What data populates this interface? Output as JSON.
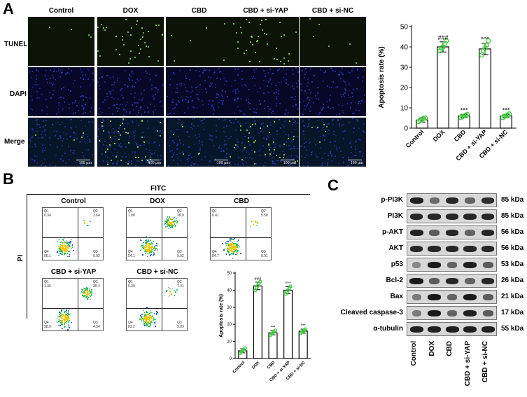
{
  "panelA": {
    "letter": "A",
    "columns": [
      "Control",
      "DOX",
      "CBD",
      "CBD + si-YAP",
      "CBD + si-NC"
    ],
    "rows": [
      "TUNEL",
      "DAPI",
      "Merge"
    ],
    "scale_bar": "100 μm",
    "chart_data": {
      "type": "bar",
      "categories": [
        "Control",
        "DOX",
        "CBD",
        "CBD + si-YAP",
        "CBD + si-NC"
      ],
      "values": [
        4,
        40,
        6,
        39,
        6
      ],
      "errors": [
        1,
        2.5,
        0.8,
        2.8,
        0.8
      ],
      "points": [
        [
          3.2,
          3.8,
          4.4,
          4.8,
          5.0
        ],
        [
          38,
          39.5,
          40,
          41.5,
          43
        ],
        [
          5.2,
          5.6,
          6,
          6.4,
          6.8
        ],
        [
          36,
          38,
          39.5,
          41,
          43
        ],
        [
          5.2,
          5.8,
          6,
          6.4,
          7
        ]
      ],
      "annotations": [
        "",
        "###",
        "***",
        "^^^",
        "***"
      ],
      "ylabel": "Apoptosis rate (%)",
      "ylim": [
        0,
        50
      ],
      "yticks": [
        "0",
        "10",
        "20",
        "30",
        "40",
        "50"
      ]
    }
  },
  "panelB": {
    "letter": "B",
    "axis_top": "FITC",
    "axis_left": "PI",
    "plots": [
      {
        "title": "Control",
        "q1": "0.34",
        "q2": "2.64",
        "q3": "0.92",
        "q4": "96.1"
      },
      {
        "title": "DOX",
        "q1": "1.08",
        "q2": "38.9",
        "q3": "5.92",
        "q4": "54.1"
      },
      {
        "title": "CBD",
        "q1": "0.41",
        "q2": "5.58",
        "q3": "8.91",
        "q4": "84.7"
      },
      {
        "title": "CBD + si-YAP",
        "q1": "1.36",
        "q2": "35.4",
        "q3": "4.34",
        "q4": "58.9"
      },
      {
        "title": "CBD + si-NC",
        "q1": "0.30",
        "q2": "7.41",
        "q3": "9.09",
        "q4": "83.2"
      }
    ],
    "quadrant_names": [
      "Q1",
      "Q2",
      "Q3",
      "Q4"
    ],
    "chart_data": {
      "type": "bar",
      "categories": [
        "Control",
        "DOX",
        "CBD",
        "CBD + si-YAP",
        "CBD + si-NC"
      ],
      "values": [
        4.5,
        42.5,
        15,
        40,
        16
      ],
      "errors": [
        1.2,
        2.2,
        1.2,
        2.0,
        1.2
      ],
      "points": [
        [
          3.2,
          4,
          4.5,
          5.2,
          6
        ],
        [
          40,
          41.5,
          42.5,
          44,
          45
        ],
        [
          13.8,
          14.5,
          15,
          15.6,
          16.4
        ],
        [
          37.8,
          39,
          40,
          41,
          42.2
        ],
        [
          14.8,
          15.5,
          16,
          16.6,
          17.2
        ]
      ],
      "annotations": [
        "",
        "###",
        "***",
        "^^^",
        "***"
      ],
      "ylabel": "Apoptosis rate (%)",
      "ylim": [
        0,
        50
      ],
      "yticks": [
        "0",
        "10",
        "20",
        "30",
        "40",
        "50"
      ]
    }
  },
  "panelC": {
    "letter": "C",
    "proteins": [
      "p-PI3K",
      "PI3K",
      "p-AKT",
      "AKT",
      "p53",
      "Bcl-2",
      "Bax",
      "Cleaved caspase-3",
      "α-tubulin"
    ],
    "kda": [
      "85 kDa",
      "85 kDa",
      "56 kDa",
      "56 kDa",
      "53 kDa",
      "26 kDa",
      "21 kDa",
      "17 kDa",
      "55 kDa"
    ],
    "lanes": [
      "Control",
      "DOX",
      "CBD",
      "CBD + si-YAP",
      "CBD + si-NC"
    ],
    "intensity": [
      [
        0.9,
        0.4,
        0.85,
        0.45,
        0.8
      ],
      [
        0.85,
        0.85,
        0.85,
        0.85,
        0.85
      ],
      [
        0.9,
        0.5,
        0.85,
        0.45,
        0.85
      ],
      [
        0.85,
        0.85,
        0.85,
        0.85,
        0.85
      ],
      [
        0.2,
        0.95,
        0.45,
        0.9,
        0.5
      ],
      [
        0.95,
        0.5,
        0.85,
        0.45,
        0.85
      ],
      [
        0.3,
        0.95,
        0.45,
        0.95,
        0.5
      ],
      [
        0.3,
        0.95,
        0.45,
        0.9,
        0.5
      ],
      [
        0.9,
        0.9,
        0.9,
        0.9,
        0.9
      ]
    ]
  }
}
